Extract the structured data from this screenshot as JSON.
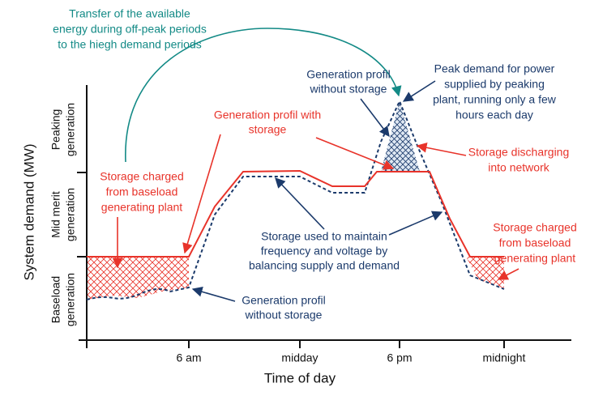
{
  "axes": {
    "y_label": "System demand (MW)",
    "x_label": "Time of day",
    "x_ticks": [
      "6 am",
      "midday",
      "6 pm",
      "midnight"
    ],
    "bands": [
      [
        "Peaking",
        "generation"
      ],
      [
        "Mid merit",
        "generation"
      ],
      [
        "Baseload",
        "generation"
      ]
    ]
  },
  "annotations": {
    "transfer": [
      "Transfer of the available",
      "energy during off-peak periods",
      "to the hiegh demand periods"
    ],
    "without_storage_top": [
      "Generation profil",
      "without storage"
    ],
    "peak_demand": [
      "Peak demand for power",
      "supplied by peaking",
      "plant, running only a few",
      "hours each day"
    ],
    "with_storage": [
      "Generation profil with",
      "storage"
    ],
    "discharging": [
      "Storage discharging",
      "into network"
    ],
    "charged_left": [
      "Storage charged",
      "from baseload",
      "generating plant"
    ],
    "maintain": [
      "Storage used to maintain",
      "frequency and voltage by",
      "balancing supply and demand"
    ],
    "charged_right": [
      "Storage charged",
      "from baseload",
      "generating plant"
    ],
    "without_storage_bottom": [
      "Generation profil",
      "without storage"
    ]
  }
}
